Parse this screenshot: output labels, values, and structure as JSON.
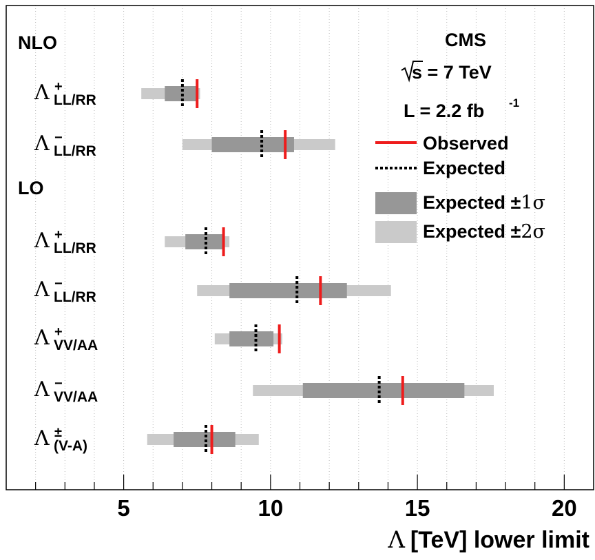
{
  "chart_data": {
    "type": "interval",
    "experiment": "CMS",
    "energy_label": "s = 7 TeV",
    "lumi_label": "L = 2.2 fb",
    "lumi_exp": "-1",
    "group_labels": [
      "NLO",
      "LO"
    ],
    "x_axis_symbol": "Λ",
    "x_axis_label": "[TeV] lower limit",
    "xlim": [
      1,
      21
    ],
    "xticks": [
      "5",
      "10",
      "15",
      "20"
    ],
    "grid": "vertical dotted",
    "legend": {
      "placement": "top-right",
      "observed": "Observed",
      "expected": "Expected",
      "band1_prefix": "Expected ±",
      "band1_sym": "1σ",
      "band2_prefix": "Expected ±",
      "band2_sym": "2σ"
    },
    "colors": {
      "observed": "#ee1c1c",
      "expected": "#000000",
      "band1": "#979797",
      "band2": "#cacaca"
    },
    "rows": [
      {
        "group": "NLO",
        "symbol": "Λ",
        "sup": "+",
        "sub": "LL/RR",
        "band2": [
          5.6,
          7.6
        ],
        "band1": [
          6.4,
          7.5
        ],
        "expected": 7.0,
        "observed": 7.5
      },
      {
        "group": "NLO",
        "symbol": "Λ",
        "sup": "−",
        "sub": "LL/RR",
        "band2": [
          7.0,
          12.2
        ],
        "band1": [
          8.0,
          10.8
        ],
        "expected": 9.7,
        "observed": 10.5
      },
      {
        "group": "LO",
        "symbol": "Λ",
        "sup": "+",
        "sub": "LL/RR",
        "band2": [
          6.4,
          8.6
        ],
        "band1": [
          7.1,
          8.4
        ],
        "expected": 7.8,
        "observed": 8.4
      },
      {
        "group": "LO",
        "symbol": "Λ",
        "sup": "−",
        "sub": "LL/RR",
        "band2": [
          7.5,
          14.1
        ],
        "band1": [
          8.6,
          12.6
        ],
        "expected": 10.9,
        "observed": 11.7
      },
      {
        "group": "LO",
        "symbol": "Λ",
        "sup": "+",
        "sub": "VV/AA",
        "band2": [
          8.1,
          10.4
        ],
        "band1": [
          8.6,
          10.1
        ],
        "expected": 9.5,
        "observed": 10.3
      },
      {
        "group": "LO",
        "symbol": "Λ",
        "sup": "−",
        "sub": "VV/AA",
        "band2": [
          9.4,
          17.6
        ],
        "band1": [
          11.1,
          16.6
        ],
        "expected": 13.7,
        "observed": 14.5
      },
      {
        "group": "LO",
        "symbol": "Λ",
        "sup": "±",
        "sub": "(V-A)",
        "band2": [
          5.8,
          9.6
        ],
        "band1": [
          6.7,
          8.8
        ],
        "expected": 7.8,
        "observed": 8.0
      }
    ]
  }
}
